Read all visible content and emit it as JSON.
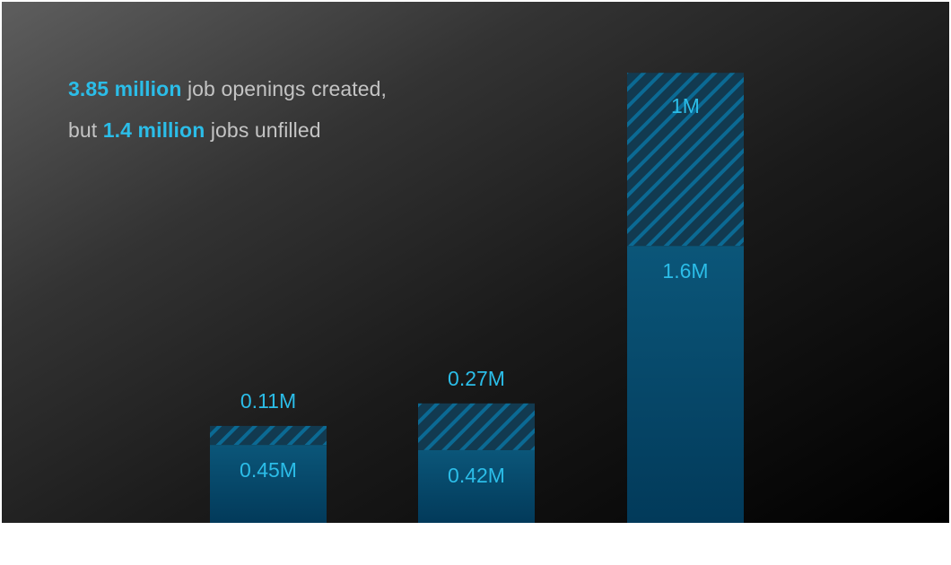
{
  "headline": {
    "line1_highlight": "3.85 million",
    "line1_rest": " job openings created,",
    "line2_prefix": "but ",
    "line2_highlight": "1.4 million",
    "line2_rest": " jobs unfilled"
  },
  "colors": {
    "accent": "#2bbde8",
    "filled_bar": "#0b5679",
    "filled_bar_bottom": "#023a5a",
    "hatch_bg": "#123a50",
    "hatch_line": "#0b6a94",
    "label": "#2bbde8",
    "muted_text": "#c4c4c4"
  },
  "chart_data": {
    "type": "bar",
    "stacked": true,
    "categories": [
      "",
      "",
      ""
    ],
    "series": [
      {
        "values": [
          0.45,
          0.42,
          1.6
        ],
        "labels": [
          "0.45M",
          "0.42M",
          "1.6M"
        ],
        "style": "solid"
      },
      {
        "values": [
          0.11,
          0.27,
          1.0
        ],
        "labels": [
          "0.11M",
          "0.27M",
          "1M"
        ],
        "style": "hatched"
      }
    ],
    "ylim": [
      0,
      2.6
    ],
    "title": "",
    "xlabel": "",
    "ylabel": "",
    "grid": false,
    "legend": "none"
  }
}
